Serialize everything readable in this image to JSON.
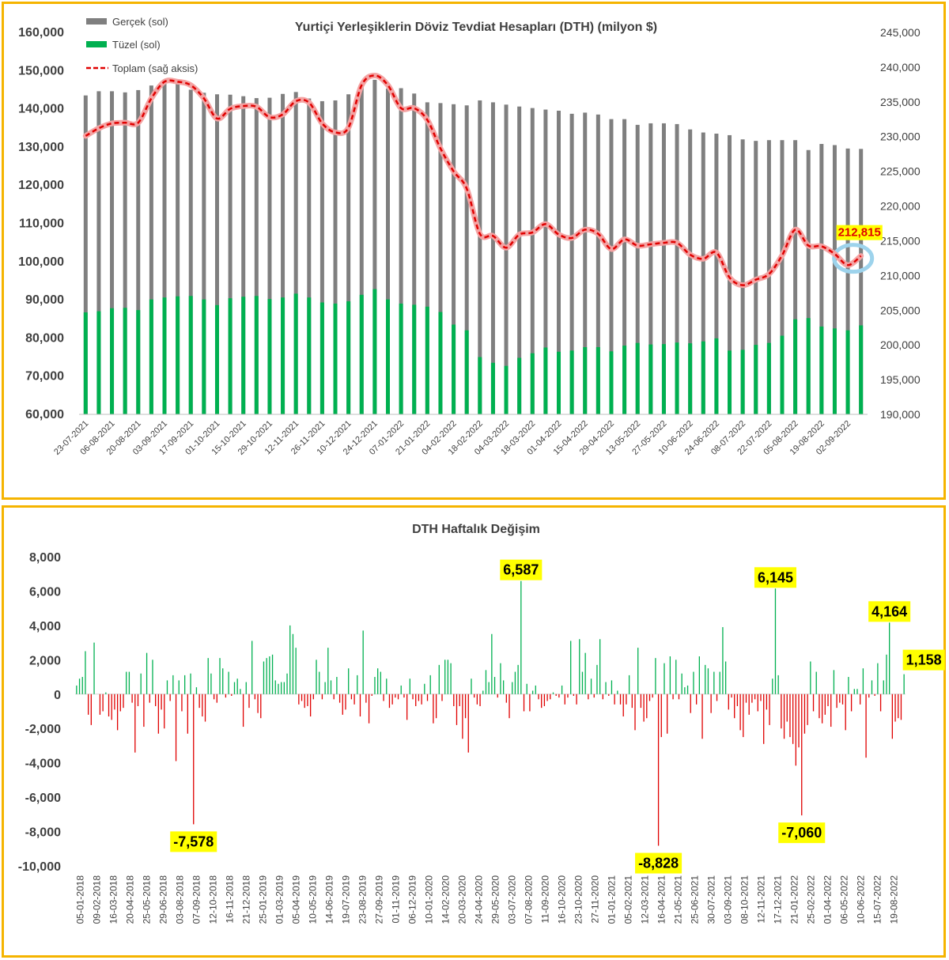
{
  "chart_data": [
    {
      "type": "bar",
      "title": "Yurtiçi Yerleşiklerin Döviz Tevdiat Hesapları (DTH) (milyon $)",
      "left_axis": {
        "ylim": [
          60000,
          160000
        ],
        "ticks": [
          "60,000",
          "70,000",
          "80,000",
          "90,000",
          "100,000",
          "110,000",
          "120,000",
          "130,000",
          "140,000",
          "150,000",
          "160,000"
        ]
      },
      "right_axis": {
        "ylim": [
          190000,
          245000
        ],
        "ticks": [
          "190,000",
          "195,000",
          "200,000",
          "205,000",
          "210,000",
          "215,000",
          "220,000",
          "225,000",
          "230,000",
          "235,000",
          "240,000",
          "245,000"
        ]
      },
      "x_tick_labels": [
        "23-07-2021",
        "06-08-2021",
        "20-08-2021",
        "03-09-2021",
        "17-09-2021",
        "01-10-2021",
        "15-10-2021",
        "29-10-2021",
        "12-11-2021",
        "26-11-2021",
        "10-12-2021",
        "24-12-2021",
        "07-01-2022",
        "21-01-2022",
        "04-02-2022",
        "18-02-2022",
        "04-03-2022",
        "18-03-2022",
        "01-04-2022",
        "15-04-2022",
        "29-04-2022",
        "13-05-2022",
        "27-05-2022",
        "10-06-2022",
        "24-06-2022",
        "08-07-2022",
        "22-07-2022",
        "05-08-2022",
        "19-08-2022",
        "02-09-2022"
      ],
      "legend": [
        "Gerçek (sol)",
        "Tüzel (sol)",
        "Toplam (sağ aksis)"
      ],
      "colors": {
        "gercek": "#7f7f7f",
        "tuzel": "#00b050",
        "toplam": "#e00000",
        "highlight": "#9dd3ec"
      },
      "series": [
        {
          "name": "Gerçek (sol)",
          "axis": "left",
          "values": [
            143500,
            144600,
            144600,
            144300,
            144900,
            146100,
            147600,
            146700,
            145000,
            144200,
            143800,
            143700,
            143300,
            142800,
            142900,
            143900,
            144400,
            142700,
            142000,
            142200,
            143800,
            146100,
            147600,
            145300,
            145400,
            144000,
            141700,
            141500,
            141200,
            140900,
            142200,
            141700,
            141100,
            140600,
            140200,
            139800,
            139500,
            138700,
            139000,
            138500,
            137300,
            137300,
            135800,
            136200,
            136200,
            136000,
            134600,
            133800,
            133500,
            133100,
            132000,
            131600,
            131800,
            131800,
            131800,
            129200,
            130800,
            130500,
            129600,
            129500
          ]
        },
        {
          "name": "Tüzel (sol)",
          "axis": "left",
          "values": [
            86700,
            87000,
            87800,
            87900,
            87300,
            90100,
            90600,
            90900,
            91000,
            90100,
            88600,
            90400,
            90800,
            91000,
            90200,
            90600,
            91600,
            90600,
            89300,
            89000,
            89600,
            91300,
            92800,
            90100,
            89000,
            88700,
            88200,
            86800,
            83500,
            82000,
            75000,
            73500,
            72700,
            74800,
            76000,
            77500,
            76400,
            76700,
            77600,
            77600,
            76500,
            78000,
            78700,
            78300,
            78400,
            78800,
            78600,
            79100,
            79900,
            76700,
            76900,
            78200,
            78700,
            80600,
            84900,
            85200,
            83000,
            82500,
            82000,
            83300
          ]
        },
        {
          "name": "Toplam (sağ aksis)",
          "axis": "right",
          "values": [
            230100,
            231200,
            231900,
            232000,
            232000,
            235500,
            237900,
            237900,
            237400,
            235500,
            232600,
            234000,
            234400,
            234300,
            232800,
            233200,
            235100,
            234900,
            231900,
            230600,
            231300,
            237400,
            238800,
            237400,
            234100,
            234100,
            232400,
            228300,
            225000,
            222500,
            216000,
            215700,
            214000,
            215900,
            216200,
            217400,
            215900,
            215400,
            216600,
            216000,
            213800,
            215200,
            214300,
            214500,
            214700,
            214700,
            213000,
            212400,
            213300,
            209700,
            208600,
            209400,
            210200,
            212900,
            216600,
            214300,
            214200,
            213100,
            211500,
            212815
          ]
        }
      ],
      "annotation": "212,815"
    },
    {
      "type": "bar",
      "title": "DTH Haftalık Değişim",
      "ylim": [
        -10000,
        8000
      ],
      "y_ticks": [
        "-10,000",
        "-8,000",
        "-6,000",
        "-4,000",
        "-2,000",
        "0",
        "2,000",
        "4,000",
        "6,000",
        "8,000"
      ],
      "x_tick_labels": [
        "05-01-2018",
        "09-02-2018",
        "16-03-2018",
        "20-04-2018",
        "25-05-2018",
        "29-06-2018",
        "03-08-2018",
        "07-09-2018",
        "12-10-2018",
        "16-11-2018",
        "21-12-2018",
        "25-01-2019",
        "01-03-2019",
        "05-04-2019",
        "10-05-2019",
        "14-06-2019",
        "19-07-2019",
        "23-08-2019",
        "27-09-2019",
        "01-11-2019",
        "06-12-2019",
        "10-01-2020",
        "14-02-2020",
        "20-03-2020",
        "24-04-2020",
        "29-05-2020",
        "03-07-2020",
        "07-08-2020",
        "11-09-2020",
        "16-10-2020",
        "23-10-2020",
        "27-11-2020",
        "01-01-2021",
        "05-02-2021",
        "12-03-2021",
        "16-04-2021",
        "21-05-2021",
        "25-06-2021",
        "30-07-2021",
        "03-09-2021",
        "08-10-2021",
        "12-11-2021",
        "17-12-2021",
        "21-01-2022",
        "25-02-2022",
        "01-04-2022",
        "06-05-2022",
        "10-06-2022",
        "15-07-2022",
        "19-08-2022"
      ],
      "colors": {
        "positive": "#00b050",
        "negative": "#e00000",
        "callout": "#ffff00"
      },
      "values": [
        500,
        900,
        1000,
        2500,
        -1200,
        -1800,
        3000,
        0,
        -1200,
        -1000,
        100,
        -1300,
        -1500,
        -900,
        -2100,
        -1000,
        -800,
        1300,
        1300,
        -500,
        -3400,
        -700,
        1200,
        -1900,
        2400,
        -500,
        2000,
        -700,
        -2300,
        -900,
        -2000,
        800,
        -400,
        1100,
        -3900,
        800,
        -1000,
        1100,
        -2300,
        1200,
        -7578,
        400,
        -800,
        -1300,
        -1600,
        2100,
        1200,
        -300,
        -500,
        2100,
        1500,
        -200,
        1300,
        -100,
        700,
        900,
        300,
        -1900,
        700,
        -800,
        3100,
        -300,
        -1100,
        -1400,
        1900,
        2100,
        2200,
        2300,
        800,
        600,
        700,
        700,
        1200,
        4000,
        3500,
        2700,
        -600,
        -400,
        -800,
        -700,
        -1300,
        -300,
        2000,
        1300,
        -300,
        700,
        2700,
        800,
        -300,
        1000,
        -500,
        -1200,
        -900,
        1500,
        -300,
        -600,
        1100,
        -1300,
        3700,
        -500,
        -1700,
        -100,
        1000,
        1500,
        1300,
        -400,
        900,
        -800,
        -600,
        -200,
        -300,
        500,
        -200,
        -1500,
        900,
        -300,
        -700,
        -400,
        -600,
        600,
        -400,
        1100,
        -1700,
        -1400,
        1700,
        -400,
        2000,
        2000,
        1800,
        -700,
        -1800,
        -700,
        -2600,
        -1400,
        -3400,
        900,
        -200,
        -600,
        -700,
        200,
        1400,
        700,
        3500,
        1000,
        -200,
        1800,
        800,
        -500,
        -1400,
        700,
        1300,
        1700,
        6587,
        -1000,
        600,
        -1000,
        200,
        500,
        -300,
        -800,
        -700,
        -400,
        -300,
        100,
        -100,
        -200,
        500,
        -600,
        -200,
        3100,
        -100,
        -600,
        3200,
        1300,
        2400,
        -300,
        900,
        -200,
        1700,
        3200,
        -300,
        700,
        -100,
        800,
        -600,
        200,
        -600,
        -1300,
        -600,
        1100,
        -800,
        -2100,
        2700,
        -800,
        -1600,
        -1400,
        -400,
        -200,
        2100,
        -8828,
        -2500,
        1800,
        -2300,
        2200,
        -300,
        2000,
        -300,
        1200,
        400,
        500,
        -1100,
        1300,
        -600,
        2200,
        -2600,
        1700,
        1500,
        -1100,
        1300,
        -400,
        1300,
        3900,
        1900,
        -900,
        -200,
        -1400,
        -700,
        -2100,
        -2500,
        -500,
        -1200,
        -500,
        -300,
        -1000,
        -400,
        -2900,
        -900,
        -1800,
        900,
        6145,
        1100,
        -2000,
        -2600,
        -1600,
        -2500,
        -2900,
        -4164,
        -3100,
        -7060,
        -2300,
        -1800,
        1900,
        -1000,
        1300,
        -1400,
        -1700,
        -1200,
        -700,
        -1900,
        1400,
        -800,
        -500,
        -600,
        -2100,
        1000,
        -1000,
        300,
        300,
        -600,
        1500,
        -3700,
        -200,
        800,
        -100,
        1800,
        -1000,
        800,
        2300,
        4164,
        -2600,
        -1600,
        -1400,
        -1500,
        1158
      ],
      "callouts": [
        "6,587",
        "-7,578",
        "6,145",
        "-8,828",
        "-7,060",
        "4,164",
        "1,158"
      ]
    }
  ]
}
